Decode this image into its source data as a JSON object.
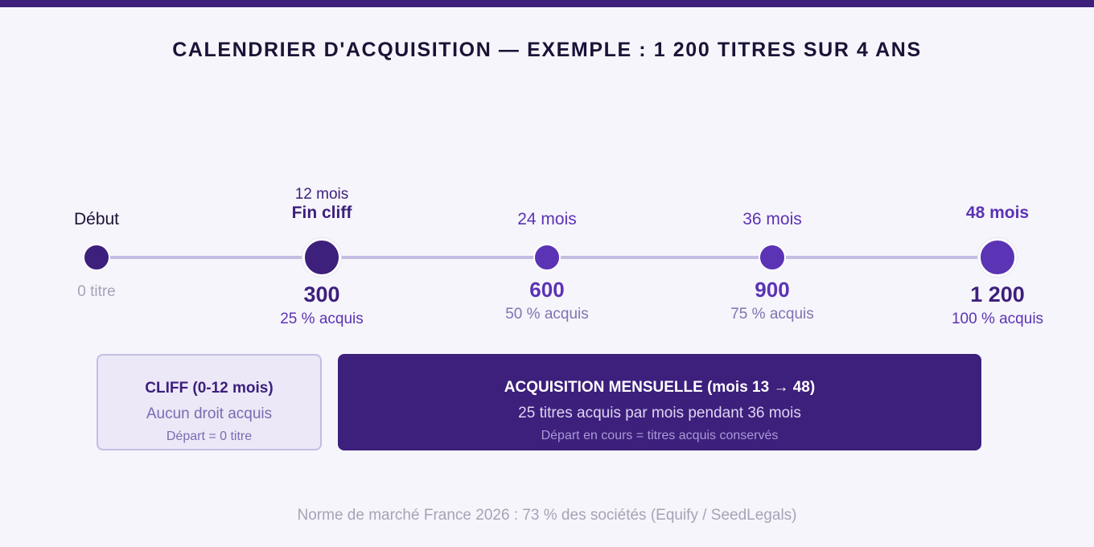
{
  "title": "CALENDRIER D'ACQUISITION — EXEMPLE : 1 200 TITRES SUR 4 ANS",
  "milestones": [
    {
      "label": "Début",
      "count": "",
      "percent": "0 titre"
    },
    {
      "month": "12 mois",
      "label": "Fin cliff",
      "count": "300",
      "percent": "25 % acquis"
    },
    {
      "label": "24 mois",
      "count": "600",
      "percent": "50 % acquis"
    },
    {
      "label": "36 mois",
      "count": "900",
      "percent": "75 % acquis"
    },
    {
      "label": "48 mois",
      "count": "1 200",
      "percent": "100 % acquis"
    }
  ],
  "cliff_box": {
    "heading": "CLIFF (0-12 mois)",
    "text": "Aucun droit acquis",
    "note": "Départ = 0 titre"
  },
  "monthly_box": {
    "heading": "ACQUISITION MENSUELLE (mois 13 → 48)",
    "text": "25 titres acquis par mois pendant 36 mois",
    "note": "Départ en cours = titres acquis conservés"
  },
  "footer": "Norme de marché France 2026 : 73 % des sociétés (Equify / SeedLegals)",
  "colors": {
    "dark_purple": "#3d1f7c",
    "purple": "#5b33b5",
    "track": "#c4bde3",
    "background": "#f6f5fb"
  }
}
